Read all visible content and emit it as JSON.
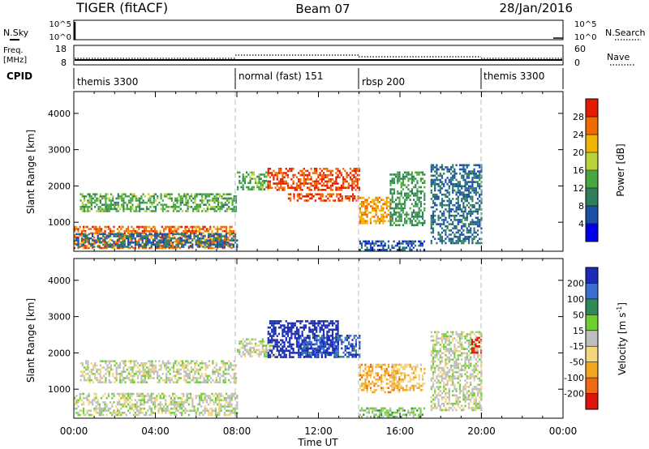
{
  "header": {
    "station": "TIGER (fitACF)",
    "beam": "Beam 07",
    "date": "28/Jan/2016"
  },
  "left_labels": {
    "nsky": "N.Sky",
    "freq_line1": "Freq.",
    "freq_line2": "[MHz]",
    "cpid": "CPID"
  },
  "right_labels": {
    "nsearch": "N.Search",
    "nave": "Nave"
  },
  "nsky_axis": {
    "left_ticks": [
      "10^5",
      "10^0"
    ],
    "right_ticks": [
      "10^5",
      "10^0"
    ]
  },
  "freq_axis": {
    "left_ticks": [
      "18",
      "8"
    ],
    "right_ticks": [
      "60",
      "0"
    ]
  },
  "cpid_segments": [
    {
      "label": "themis 3300",
      "start": 0,
      "end": 8
    },
    {
      "label": "normal (fast) 151",
      "start": 8,
      "end": 14
    },
    {
      "label": "rbsp 200",
      "start": 14,
      "end": 20
    },
    {
      "label": "themis 3300",
      "start": 20,
      "end": 24
    }
  ],
  "time_axis": {
    "label": "Time UT",
    "ticks": [
      "00:00",
      "04:00",
      "08:00",
      "12:00",
      "16:00",
      "20:00",
      "00:00"
    ]
  },
  "range_axis": {
    "label": "Slant Range [km]",
    "ticks": [
      "1000",
      "2000",
      "3000",
      "4000"
    ],
    "ylim": [
      200,
      4600
    ]
  },
  "power_scale": {
    "label": "Power [dB]",
    "ticks": [
      "4",
      "8",
      "12",
      "16",
      "20",
      "24",
      "28"
    ],
    "colors": [
      "#0000ee",
      "#1c4fa8",
      "#2f7f5f",
      "#48a840",
      "#b8d23a",
      "#f0b400",
      "#f06a00",
      "#e61c00"
    ]
  },
  "velocity_scale": {
    "label_main": "Velocity [m s",
    "label_sup": "-1",
    "label_end": "]",
    "ticks": [
      "200",
      "100",
      "50",
      "15",
      "-15",
      "-50",
      "-100",
      "-200"
    ],
    "colors": [
      "#1a2db4",
      "#3a6fd0",
      "#2e8b57",
      "#6fcf2e",
      "#bebebe",
      "#f3d67a",
      "#f3a51e",
      "#ef6a12",
      "#e0140a"
    ]
  },
  "chart_data": [
    {
      "type": "heatmap",
      "title": "Power",
      "xlabel": "Time UT",
      "ylabel": "Slant Range [km]",
      "xlim": [
        0,
        24
      ],
      "ylim": [
        200,
        4600
      ],
      "x_unit": "hours UT",
      "clabel": "Power [dB]",
      "clim": [
        0,
        32
      ],
      "regions": [
        {
          "t": [
            0,
            7.8
          ],
          "r": [
            300,
            900
          ],
          "value": 26
        },
        {
          "t": [
            0,
            8
          ],
          "r": [
            300,
            700
          ],
          "value": 8
        },
        {
          "t": [
            0.3,
            8
          ],
          "r": [
            1300,
            1800
          ],
          "value": 14
        },
        {
          "t": [
            8,
            9.5
          ],
          "r": [
            1900,
            2400
          ],
          "value": 14
        },
        {
          "t": [
            9.5,
            14
          ],
          "r": [
            1900,
            2500
          ],
          "value": 28
        },
        {
          "t": [
            10.5,
            14
          ],
          "r": [
            1600,
            1800
          ],
          "value": 28
        },
        {
          "t": [
            14,
            15.5
          ],
          "r": [
            1000,
            1700
          ],
          "value": 24
        },
        {
          "t": [
            15.5,
            17.2
          ],
          "r": [
            900,
            2400
          ],
          "value": 12
        },
        {
          "t": [
            17.5,
            20
          ],
          "r": [
            400,
            2600
          ],
          "value": 8
        },
        {
          "t": [
            14,
            17.2
          ],
          "r": [
            250,
            500
          ],
          "value": 6
        }
      ]
    },
    {
      "type": "heatmap",
      "title": "Velocity",
      "xlabel": "Time UT",
      "ylabel": "Slant Range [km]",
      "xlim": [
        0,
        24
      ],
      "ylim": [
        200,
        4600
      ],
      "x_unit": "hours UT",
      "clabel": "Velocity [m s-1]",
      "clim": [
        -200,
        200
      ],
      "regions": [
        {
          "t": [
            0,
            8
          ],
          "r": [
            300,
            900
          ],
          "value": 0
        },
        {
          "t": [
            0.3,
            8
          ],
          "r": [
            1200,
            1800
          ],
          "value": 0
        },
        {
          "t": [
            8,
            10
          ],
          "r": [
            1900,
            2400
          ],
          "value": 0
        },
        {
          "t": [
            9.5,
            13
          ],
          "r": [
            1900,
            2900
          ],
          "value": 250
        },
        {
          "t": [
            11,
            14
          ],
          "r": [
            1900,
            2500
          ],
          "value": 150
        },
        {
          "t": [
            14,
            16
          ],
          "r": [
            900,
            1700
          ],
          "value": -80
        },
        {
          "t": [
            15.5,
            17.2
          ],
          "r": [
            1000,
            1700
          ],
          "value": -60
        },
        {
          "t": [
            17.5,
            20
          ],
          "r": [
            400,
            2600
          ],
          "value": 0
        },
        {
          "t": [
            19.5,
            20
          ],
          "r": [
            2000,
            2500
          ],
          "value": -220
        },
        {
          "t": [
            14,
            17.2
          ],
          "r": [
            250,
            500
          ],
          "value": 40
        }
      ]
    }
  ]
}
